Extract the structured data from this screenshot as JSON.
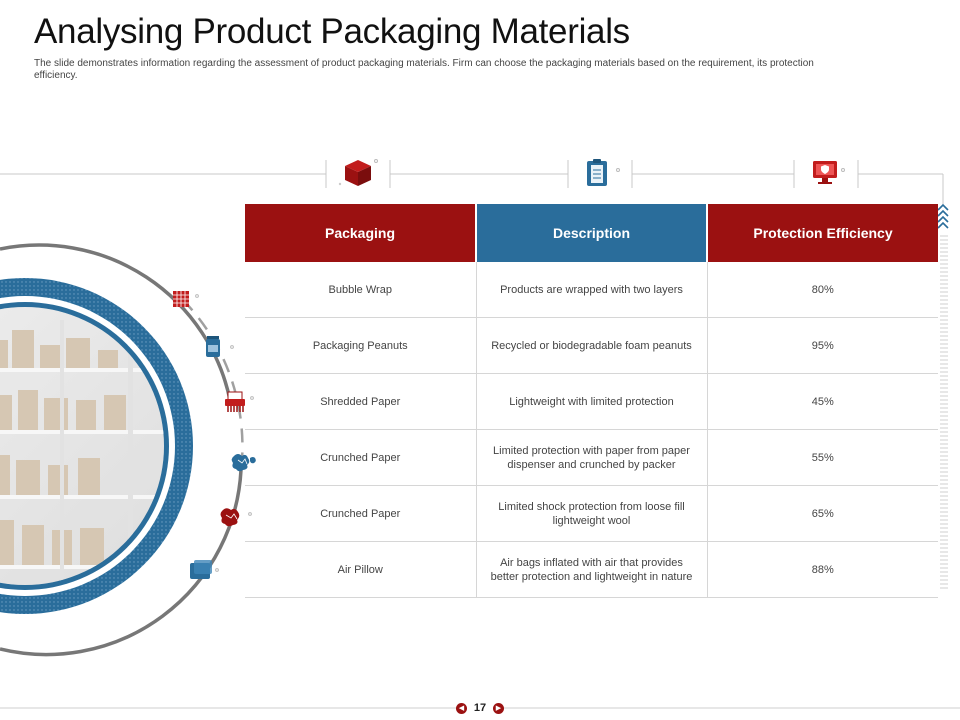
{
  "page": {
    "title": "Analysing Product Packaging Materials",
    "subtitle": "The slide demonstrates information regarding the assessment of product packaging materials. Firm can choose the packaging materials based on the requirement, its protection efficiency."
  },
  "table": {
    "headers": [
      "Packaging",
      "Description",
      "Protection Efficiency"
    ],
    "rows": [
      {
        "packaging": "Bubble Wrap",
        "description": "Products are wrapped with two layers",
        "efficiency": "80%"
      },
      {
        "packaging": "Packaging Peanuts",
        "description": "Recycled or biodegradable foam peanuts",
        "efficiency": "95%"
      },
      {
        "packaging": "Shredded Paper",
        "description": "Lightweight with limited protection",
        "efficiency": "45%"
      },
      {
        "packaging": "Crunched Paper",
        "description": "Limited protection with paper from paper dispenser and crunched by packer",
        "efficiency": "55%"
      },
      {
        "packaging": "Crunched Paper",
        "description": "Limited shock protection from loose fill lightweight wool",
        "efficiency": "65%"
      },
      {
        "packaging": "Air Pillow",
        "description": "Air bags inflated with air that provides better protection and lightweight in nature",
        "efficiency": "88%"
      }
    ]
  },
  "footer": {
    "page_number": "17",
    "prev_icon": "chevron-left-icon",
    "next_icon": "chevron-right-icon"
  },
  "icons": {
    "header": [
      "box-3d-icon",
      "clipboard-icon",
      "computer-shield-icon"
    ],
    "side": [
      "bubble-wrap-icon",
      "peanuts-bag-icon",
      "shredder-icon",
      "crumpled-paper-icon",
      "crumpled-paper-icon",
      "air-pillow-icon"
    ]
  },
  "colors": {
    "accent_red": "#9b1111",
    "accent_blue": "#2a6d9b",
    "header_gray": "#c8c8c8"
  }
}
